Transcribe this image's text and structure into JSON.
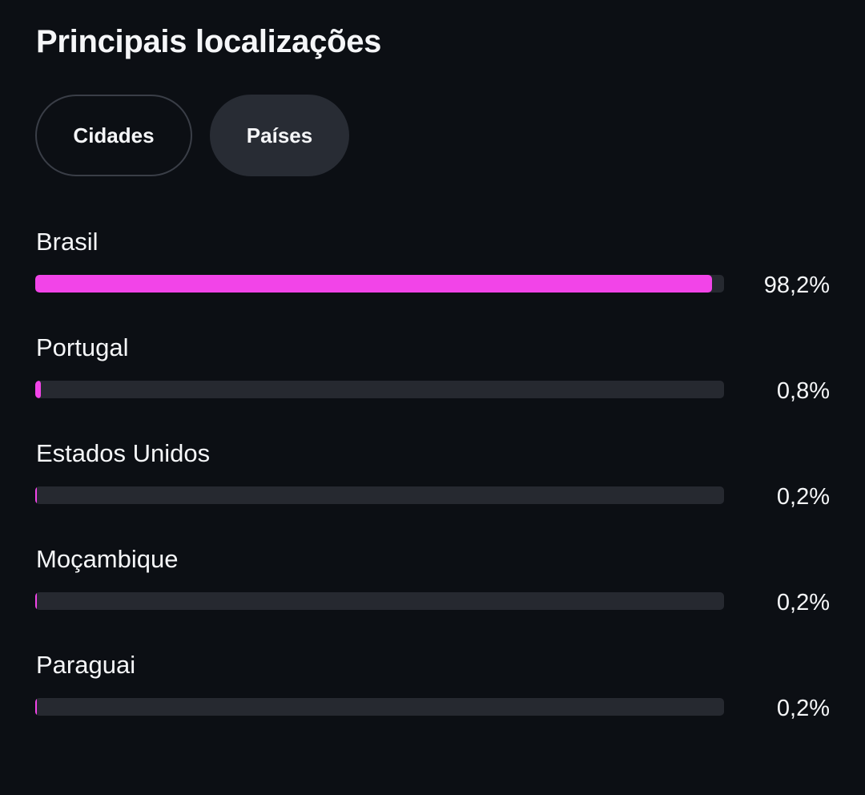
{
  "title": "Principais localizações",
  "tabs": [
    {
      "label": "Cidades",
      "selected": false
    },
    {
      "label": "Países",
      "selected": true
    }
  ],
  "accent_color": "#f244e8",
  "track_color": "#262930",
  "locations": [
    {
      "name": "Brasil",
      "percent_label": "98,2%",
      "value": 98.2
    },
    {
      "name": "Portugal",
      "percent_label": "0,8%",
      "value": 0.8
    },
    {
      "name": "Estados Unidos",
      "percent_label": "0,2%",
      "value": 0.2
    },
    {
      "name": "Moçambique",
      "percent_label": "0,2%",
      "value": 0.2
    },
    {
      "name": "Paraguai",
      "percent_label": "0,2%",
      "value": 0.2
    }
  ]
}
